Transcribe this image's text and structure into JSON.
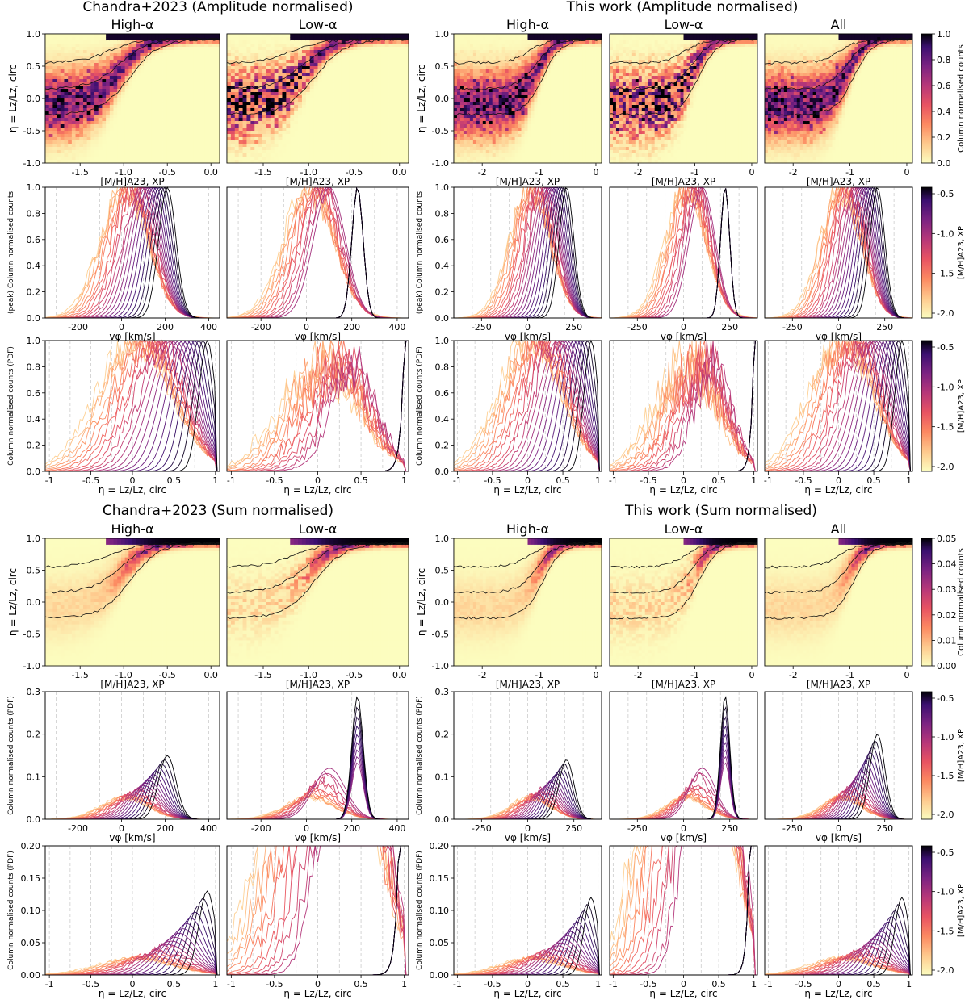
{
  "figure": {
    "groups": [
      {
        "title": "Chandra+2023 (Amplitude normalised)"
      },
      {
        "title": "This work (Amplitude normalised)"
      },
      {
        "title": "Chandra+2023 (Sum normalised)"
      },
      {
        "title": "This work (Sum normalised)"
      }
    ]
  },
  "colorbars": {
    "amp_counts": {
      "label": "Column normalised counts",
      "ticks": [
        "1.0",
        "0.8",
        "0.6",
        "0.4",
        "0.2",
        "0.0"
      ]
    },
    "sum_counts": {
      "label": "Column normalised counts",
      "ticks": [
        "0.05",
        "0.04",
        "0.03",
        "0.02",
        "0.01",
        "0.00"
      ]
    },
    "metal": {
      "label": "[M/H]A23, XP",
      "ticks": [
        "-0.5",
        "-1.0",
        "-1.5",
        "-2.0"
      ]
    }
  },
  "chart_data": [
    {
      "type": "heatmap",
      "id": "chandra-amp-heat-high",
      "panel_title": "High-α",
      "xlabel": "[M/H]A23, XP",
      "ylabel": "η = Lz/Lz, circ",
      "xticks": [
        "-1.5",
        "-1.0",
        "-0.5",
        "0.0"
      ],
      "yticks": [
        "1.0",
        "0.5",
        "0.0",
        "-0.5",
        "-1.0"
      ],
      "xlim": [
        -1.9,
        0.1
      ],
      "ylim": [
        -1.0,
        1.0
      ]
    },
    {
      "type": "heatmap",
      "id": "chandra-amp-heat-low",
      "panel_title": "Low-α",
      "xlabel": "[M/H]A23, XP",
      "xticks": [
        "-1.5",
        "-1.0",
        "-0.5",
        "0.0"
      ],
      "xlim": [
        -1.9,
        0.1
      ],
      "ylim": [
        -1.0,
        1.0
      ]
    },
    {
      "type": "heatmap",
      "id": "this-amp-heat-high",
      "panel_title": "High-α",
      "xlabel": "[M/H]A23, XP",
      "ylabel": "η = Lz/Lz, circ",
      "xticks": [
        "-2",
        "-1",
        "0"
      ],
      "yticks": [
        "1.0",
        "0.5",
        "0.0",
        "-0.5",
        "-1.0"
      ],
      "xlim": [
        -2.5,
        0.1
      ],
      "ylim": [
        -1.0,
        1.0
      ]
    },
    {
      "type": "heatmap",
      "id": "this-amp-heat-low",
      "panel_title": "Low-α",
      "xlabel": "[M/H]A23, XP",
      "xticks": [
        "-2",
        "-1",
        "0"
      ],
      "xlim": [
        -2.5,
        0.1
      ],
      "ylim": [
        -1.0,
        1.0
      ]
    },
    {
      "type": "heatmap",
      "id": "this-amp-heat-all",
      "panel_title": "All",
      "xlabel": "[M/H]A23, XP",
      "xticks": [
        "-2",
        "-1",
        "0"
      ],
      "xlim": [
        -2.5,
        0.1
      ],
      "ylim": [
        -1.0,
        1.0
      ]
    },
    {
      "type": "line",
      "id": "chandra-amp-vphi-high",
      "xlabel": "vφ [km/s]",
      "ylabel": "(peak) Column normalised counts",
      "xticks": [
        "-200",
        "0",
        "200",
        "400"
      ],
      "yticks": [
        "1.0",
        "0.8",
        "0.6",
        "0.4",
        "0.2",
        "0.0"
      ],
      "xlim": [
        -350,
        450
      ],
      "ylim": [
        0,
        1.0
      ],
      "series": "metallicity curves, [M/H] from -2.0 to -0.5",
      "peak_low_metal": 10,
      "peak_high_metal": 200
    },
    {
      "type": "line",
      "id": "chandra-amp-vphi-low",
      "xlabel": "vφ [km/s]",
      "xticks": [
        "-200",
        "0",
        "200",
        "400"
      ],
      "xlim": [
        -350,
        450
      ],
      "ylim": [
        0,
        1.0
      ],
      "peak_low_metal": 40,
      "peak_high_metal": 220
    },
    {
      "type": "line",
      "id": "this-amp-vphi-high",
      "xlabel": "vφ [km/s]",
      "ylabel": "(peak) Column normalised counts",
      "xticks": [
        "-250",
        "0",
        "250"
      ],
      "yticks": [
        "1.0",
        "0.8",
        "0.6",
        "0.4",
        "0.2",
        "0.0"
      ],
      "xlim": [
        -400,
        400
      ],
      "ylim": [
        0,
        1.0
      ]
    },
    {
      "type": "line",
      "id": "this-amp-vphi-low",
      "xlabel": "vφ [km/s]",
      "xticks": [
        "-250",
        "0",
        "250"
      ],
      "xlim": [
        -400,
        400
      ],
      "ylim": [
        0,
        1.0
      ]
    },
    {
      "type": "line",
      "id": "this-amp-vphi-all",
      "xlabel": "vφ [km/s]",
      "xticks": [
        "-250",
        "0",
        "250"
      ],
      "xlim": [
        -400,
        400
      ],
      "ylim": [
        0,
        1.0
      ]
    },
    {
      "type": "line",
      "id": "chandra-amp-eta-high",
      "xlabel": "η = Lz/Lz, circ",
      "ylabel": "Column normalised counts (PDF)",
      "xticks": [
        "-1",
        "-0.5",
        "0",
        "0.5",
        "1"
      ],
      "yticks": [
        "1.0",
        "0.8",
        "0.6",
        "0.4",
        "0.2",
        "0.0"
      ],
      "xlim": [
        -1.05,
        1.05
      ],
      "ylim": [
        0,
        1.0
      ]
    },
    {
      "type": "line",
      "id": "chandra-amp-eta-low",
      "xlabel": "η = Lz/Lz, circ",
      "xticks": [
        "-1",
        "-0.5",
        "0",
        "0.5",
        "1"
      ],
      "xlim": [
        -1.05,
        1.05
      ],
      "ylim": [
        0,
        1.0
      ]
    },
    {
      "type": "line",
      "id": "this-amp-eta-high",
      "xlabel": "η = Lz/Lz, circ",
      "ylabel": "Column normalised counts (PDF)",
      "xticks": [
        "-1",
        "-0.5",
        "0",
        "0.5",
        "1"
      ],
      "yticks": [
        "1.0",
        "0.8",
        "0.6",
        "0.4",
        "0.2",
        "0.0"
      ],
      "xlim": [
        -1.05,
        1.05
      ],
      "ylim": [
        0,
        1.0
      ]
    },
    {
      "type": "line",
      "id": "this-amp-eta-low",
      "xlabel": "η = Lz/Lz, circ",
      "xticks": [
        "-1",
        "-0.5",
        "0",
        "0.5",
        "1"
      ],
      "xlim": [
        -1.05,
        1.05
      ],
      "ylim": [
        0,
        1.0
      ]
    },
    {
      "type": "line",
      "id": "this-amp-eta-all",
      "xlabel": "η = Lz/Lz, circ",
      "xticks": [
        "-1",
        "-0.5",
        "0",
        "0.5",
        "1"
      ],
      "xlim": [
        -1.05,
        1.05
      ],
      "ylim": [
        0,
        1.0
      ]
    },
    {
      "type": "heatmap",
      "id": "chandra-sum-heat-high",
      "panel_title": "High-α",
      "xlabel": "[M/H]A23, XP",
      "ylabel": "η = Lz/Lz, circ",
      "xticks": [
        "-1.5",
        "-1.0",
        "-0.5",
        "0.0"
      ],
      "yticks": [
        "1.0",
        "0.5",
        "0.0",
        "-0.5",
        "-1.0"
      ],
      "xlim": [
        -1.9,
        0.1
      ],
      "ylim": [
        -1.0,
        1.0
      ]
    },
    {
      "type": "heatmap",
      "id": "chandra-sum-heat-low",
      "panel_title": "Low-α",
      "xlabel": "[M/H]A23, XP",
      "xticks": [
        "-1.5",
        "-1.0",
        "-0.5",
        "0.0"
      ],
      "xlim": [
        -1.9,
        0.1
      ],
      "ylim": [
        -1.0,
        1.0
      ]
    },
    {
      "type": "heatmap",
      "id": "this-sum-heat-high",
      "panel_title": "High-α",
      "xlabel": "[M/H]A23, XP",
      "ylabel": "η = Lz/Lz, circ",
      "xticks": [
        "-2",
        "-1",
        "0"
      ],
      "yticks": [
        "1.0",
        "0.5",
        "0.0",
        "-0.5",
        "-1.0"
      ],
      "xlim": [
        -2.5,
        0.1
      ],
      "ylim": [
        -1.0,
        1.0
      ]
    },
    {
      "type": "heatmap",
      "id": "this-sum-heat-low",
      "panel_title": "Low-α",
      "xlabel": "[M/H]A23, XP",
      "xticks": [
        "-2",
        "-1",
        "0"
      ],
      "xlim": [
        -2.5,
        0.1
      ],
      "ylim": [
        -1.0,
        1.0
      ]
    },
    {
      "type": "heatmap",
      "id": "this-sum-heat-all",
      "panel_title": "All",
      "xlabel": "[M/H]A23, XP",
      "xticks": [
        "-2",
        "-1",
        "0"
      ],
      "xlim": [
        -2.5,
        0.1
      ],
      "ylim": [
        -1.0,
        1.0
      ]
    },
    {
      "type": "line",
      "id": "chandra-sum-vphi-high",
      "xlabel": "vφ [km/s]",
      "ylabel": "Column normalised counts (PDF)",
      "xticks": [
        "-200",
        "0",
        "200",
        "400"
      ],
      "yticks": [
        "0.3",
        "0.2",
        "0.1",
        "0.0"
      ],
      "xlim": [
        -350,
        450
      ],
      "ylim": [
        0,
        0.3
      ],
      "max_peak": 0.15
    },
    {
      "type": "line",
      "id": "chandra-sum-vphi-low",
      "xlabel": "vφ [km/s]",
      "xticks": [
        "-200",
        "0",
        "200",
        "400"
      ],
      "xlim": [
        -350,
        450
      ],
      "ylim": [
        0,
        0.3
      ],
      "max_peak": 0.29
    },
    {
      "type": "line",
      "id": "this-sum-vphi-high",
      "xlabel": "vφ [km/s]",
      "ylabel": "Column normalised counts (PDF)",
      "xticks": [
        "-250",
        "0",
        "250"
      ],
      "yticks": [
        "0.3",
        "0.2",
        "0.1",
        "0.0"
      ],
      "xlim": [
        -400,
        400
      ],
      "ylim": [
        0,
        0.3
      ],
      "max_peak": 0.14
    },
    {
      "type": "line",
      "id": "this-sum-vphi-low",
      "xlabel": "vφ [km/s]",
      "xticks": [
        "-250",
        "0",
        "250"
      ],
      "xlim": [
        -400,
        400
      ],
      "ylim": [
        0,
        0.3
      ],
      "max_peak": 0.29
    },
    {
      "type": "line",
      "id": "this-sum-vphi-all",
      "xlabel": "vφ [km/s]",
      "xticks": [
        "-250",
        "0",
        "250"
      ],
      "xlim": [
        -400,
        400
      ],
      "ylim": [
        0,
        0.3
      ],
      "max_peak": 0.2
    },
    {
      "type": "line",
      "id": "chandra-sum-eta-high",
      "xlabel": "η = Lz/Lz, circ",
      "ylabel": "Column normalised counts (PDF)",
      "xticks": [
        "-1",
        "-0.5",
        "0",
        "0.5",
        "1"
      ],
      "yticks": [
        "0.20",
        "0.15",
        "0.10",
        "0.05",
        "0.00"
      ],
      "xlim": [
        -1.05,
        1.05
      ],
      "ylim": [
        0,
        0.2
      ],
      "max_peak": 0.13
    },
    {
      "type": "line",
      "id": "chandra-sum-eta-low",
      "xlabel": "η = Lz/Lz, circ",
      "xticks": [
        "-1",
        "-0.5",
        "0",
        "0.5",
        "1"
      ],
      "xlim": [
        -1.05,
        1.05
      ],
      "ylim": [
        0,
        0.2
      ]
    },
    {
      "type": "line",
      "id": "this-sum-eta-high",
      "xlabel": "η = Lz/Lz, circ",
      "ylabel": "Column normalised counts (PDF)",
      "xticks": [
        "-1",
        "-0.5",
        "0",
        "0.5",
        "1"
      ],
      "yticks": [
        "0.20",
        "0.15",
        "0.10",
        "0.05",
        "0.00"
      ],
      "xlim": [
        -1.05,
        1.05
      ],
      "ylim": [
        0,
        0.2
      ],
      "max_peak": 0.12
    },
    {
      "type": "line",
      "id": "this-sum-eta-low",
      "xlabel": "η = Lz/Lz, circ",
      "xticks": [
        "-1",
        "-0.5",
        "0",
        "0.5",
        "1"
      ],
      "xlim": [
        -1.05,
        1.05
      ],
      "ylim": [
        0,
        0.2
      ]
    },
    {
      "type": "line",
      "id": "this-sum-eta-all",
      "xlabel": "η = Lz/Lz, circ",
      "xticks": [
        "-1",
        "-0.5",
        "0",
        "0.5",
        "1"
      ],
      "xlim": [
        -1.05,
        1.05
      ],
      "ylim": [
        0,
        0.2
      ],
      "max_peak": 0.12
    }
  ]
}
